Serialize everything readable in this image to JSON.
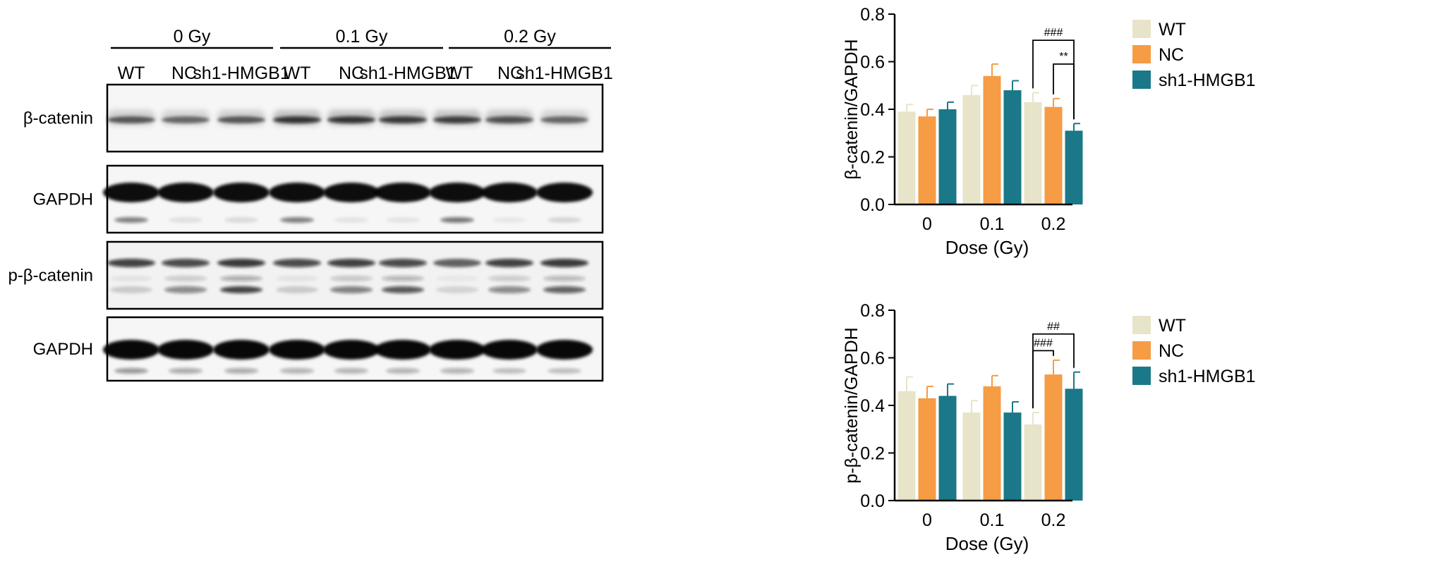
{
  "blot": {
    "dose_labels": [
      "0 Gy",
      "0.1 Gy",
      "0.2 Gy"
    ],
    "lane_labels": [
      "WT",
      "NC",
      "sh1-HMGB1",
      "WT",
      "NC",
      "sh1-HMGB1",
      "WT",
      "NC",
      "sh1-HMGB1"
    ],
    "rows": [
      {
        "label": "β-catenin",
        "kind": "thin",
        "intensity": [
          0.62,
          0.55,
          0.62,
          0.85,
          0.85,
          0.82,
          0.8,
          0.72,
          0.55
        ],
        "lower": [
          0,
          0,
          0,
          0,
          0,
          0,
          0,
          0,
          0
        ]
      },
      {
        "label": "GAPDH",
        "kind": "thick",
        "intensity": [
          0.95,
          0.95,
          0.95,
          0.95,
          0.95,
          0.95,
          0.95,
          0.95,
          0.95
        ],
        "lower": [
          0.7,
          0.12,
          0.15,
          0.7,
          0.1,
          0.1,
          0.75,
          0.08,
          0.18
        ]
      },
      {
        "label": "p-β-catenin",
        "kind": "multi",
        "intensity": [
          0.85,
          0.8,
          0.88,
          0.8,
          0.85,
          0.8,
          0.65,
          0.85,
          0.88
        ],
        "lower": [
          0.2,
          0.55,
          0.9,
          0.2,
          0.6,
          0.8,
          0.15,
          0.55,
          0.75
        ]
      },
      {
        "label": "GAPDH",
        "kind": "thick",
        "intensity": [
          0.97,
          0.97,
          0.97,
          0.97,
          0.97,
          0.97,
          0.97,
          0.97,
          0.97
        ],
        "lower": [
          0.55,
          0.45,
          0.45,
          0.4,
          0.4,
          0.4,
          0.4,
          0.3,
          0.3
        ]
      }
    ]
  },
  "colors": {
    "WT": "#e8e4c9",
    "NC": "#f59c45",
    "sh1": "#1a7888",
    "line": "#000000"
  },
  "chart_data": [
    {
      "type": "bar",
      "categories": [
        "0",
        "0.1",
        "0.2"
      ],
      "series": [
        {
          "name": "WT",
          "values": [
            0.39,
            0.46,
            0.43
          ],
          "errors": [
            0.03,
            0.04,
            0.04
          ]
        },
        {
          "name": "NC",
          "values": [
            0.37,
            0.54,
            0.41
          ],
          "errors": [
            0.03,
            0.05,
            0.035
          ]
        },
        {
          "name": "sh1-HMGB1",
          "values": [
            0.4,
            0.48,
            0.31
          ],
          "errors": [
            0.03,
            0.04,
            0.03
          ]
        }
      ],
      "xlabel": "Dose (Gy)",
      "ylabel": "β-catenin/GAPDH",
      "ylim": [
        0,
        0.8
      ],
      "yticks": [
        "0.0",
        "0.2",
        "0.4",
        "0.6",
        "0.8"
      ],
      "legend": "right",
      "annotations": [
        {
          "text": "###",
          "group": 2,
          "from": 0,
          "to": 2,
          "level": 0.69
        },
        {
          "text": "**",
          "group": 2,
          "from": 1,
          "to": 2,
          "level": 0.59
        }
      ]
    },
    {
      "type": "bar",
      "categories": [
        "0",
        "0.1",
        "0.2"
      ],
      "series": [
        {
          "name": "WT",
          "values": [
            0.46,
            0.37,
            0.32
          ],
          "errors": [
            0.06,
            0.05,
            0.05
          ]
        },
        {
          "name": "NC",
          "values": [
            0.43,
            0.48,
            0.53
          ],
          "errors": [
            0.05,
            0.045,
            0.06
          ]
        },
        {
          "name": "sh1-HMGB1",
          "values": [
            0.44,
            0.37,
            0.47
          ],
          "errors": [
            0.05,
            0.045,
            0.07
          ]
        }
      ],
      "xlabel": "Dose (Gy)",
      "ylabel": "p-β-catenin/GAPDH",
      "ylim": [
        0,
        0.8
      ],
      "yticks": [
        "0.0",
        "0.2",
        "0.4",
        "0.6",
        "0.8"
      ],
      "legend": "right",
      "annotations": [
        {
          "text": "##",
          "group": 2,
          "from": 0,
          "to": 2,
          "level": 0.7
        },
        {
          "text": "###",
          "group": 2,
          "from": 0,
          "to": 1,
          "level": 0.63
        }
      ]
    }
  ]
}
